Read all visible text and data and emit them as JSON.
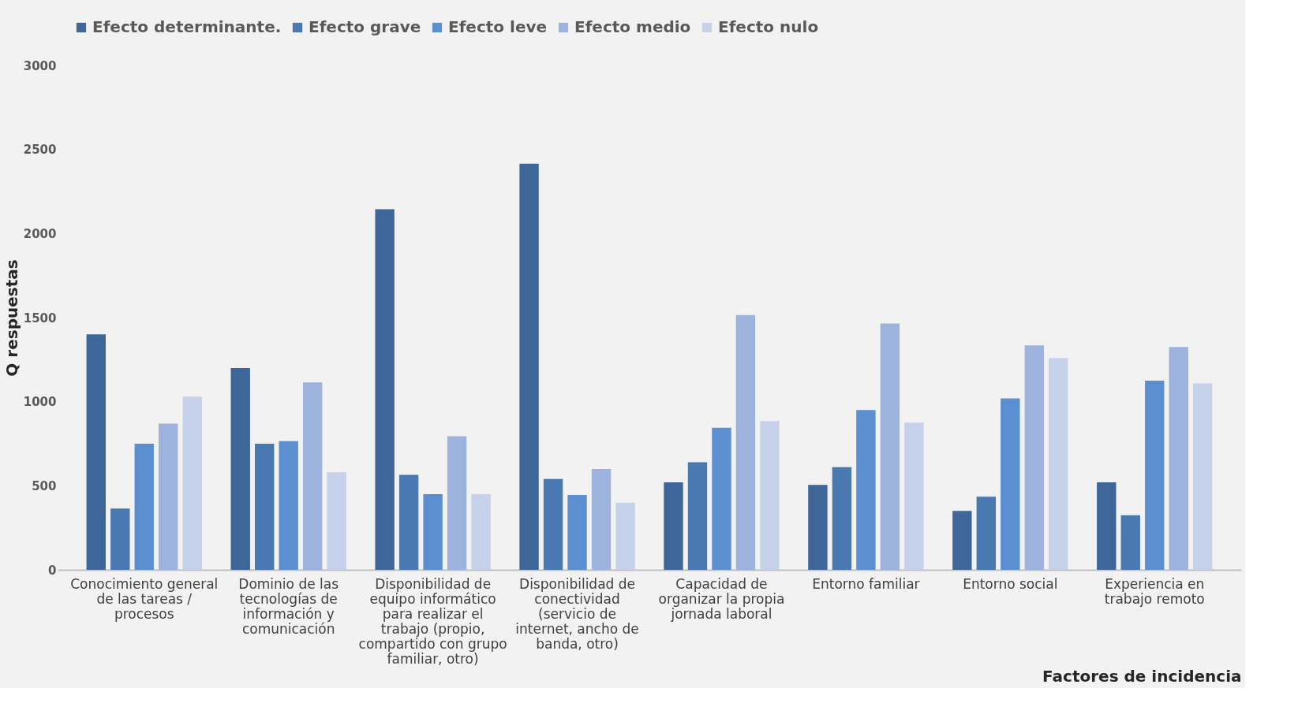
{
  "chart_data": {
    "type": "bar",
    "xlabel": "Factores de incidencia",
    "ylabel": "Q respuestas",
    "categories": [
      "Conocimiento general de las tareas / procesos",
      "Dominio de las tecnologías de información y comunicación",
      "Disponibilidad de equipo informático para realizar el trabajo (propio, compartido con grupo familiar, otro)",
      "Disponibilidad de conectividad (servicio de internet, ancho de banda, otro)",
      "Capacidad de organizar la propia jornada laboral",
      "Entorno familiar",
      "Entorno social",
      "Experiencia en trabajo remoto"
    ],
    "series": [
      {
        "name": "Efecto determinante.",
        "color": "#3f6698",
        "values": [
          1400,
          1200,
          2145,
          2415,
          520,
          505,
          350,
          520
        ]
      },
      {
        "name": "Efecto grave",
        "color": "#4a78b0",
        "values": [
          365,
          750,
          565,
          540,
          640,
          610,
          435,
          325
        ]
      },
      {
        "name": "Efecto leve",
        "color": "#5b8fd0",
        "values": [
          750,
          765,
          450,
          445,
          845,
          950,
          1020,
          1125
        ]
      },
      {
        "name": "Efecto medio",
        "color": "#9db2dc",
        "values": [
          870,
          1115,
          795,
          600,
          1515,
          1465,
          1335,
          1325
        ]
      },
      {
        "name": "Efecto nulo",
        "color": "#c6d1ea",
        "values": [
          1030,
          580,
          450,
          400,
          885,
          875,
          1260,
          1110
        ]
      }
    ],
    "ylim": [
      0,
      3000
    ],
    "yticks": [
      0,
      500,
      1000,
      1500,
      2000,
      2500,
      3000
    ],
    "grid": false,
    "legend": "top"
  }
}
